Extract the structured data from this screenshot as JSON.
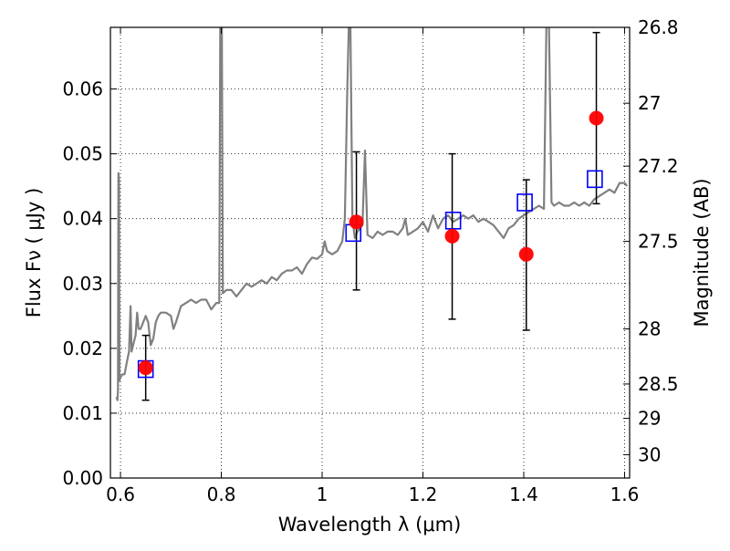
{
  "chart_data": {
    "type": "scatter",
    "xlabel": "Wavelength  λ (μm)",
    "ylabel": "Flux  Fν  ( μJy )",
    "y2label": "Magnitude (AB)",
    "xlim": [
      0.58,
      1.61
    ],
    "ylim": [
      0.0,
      0.0695
    ],
    "grid": true,
    "x_ticks": [
      0.6,
      0.8,
      1.0,
      1.2,
      1.4,
      1.6
    ],
    "x_tick_labels": [
      "0.6",
      "0.8",
      "1",
      "1.2",
      "1.4",
      "1.6"
    ],
    "y_ticks": [
      0.0,
      0.01,
      0.02,
      0.03,
      0.04,
      0.05,
      0.06
    ],
    "y_tick_labels": [
      "0.00",
      "0.01",
      "0.02",
      "0.03",
      "0.04",
      "0.05",
      "0.06"
    ],
    "y2_ticks": [
      {
        "label": "26.8",
        "flux": 0.0695
      },
      {
        "label": "27",
        "flux": 0.0578
      },
      {
        "label": "27.2",
        "flux": 0.0481
      },
      {
        "label": "27.5",
        "flux": 0.0365
      },
      {
        "label": "28",
        "flux": 0.023
      },
      {
        "label": "28.5",
        "flux": 0.0145
      },
      {
        "label": "29",
        "flux": 0.0092
      },
      {
        "label": "30",
        "flux": 0.0036
      }
    ],
    "series": [
      {
        "kind": "line",
        "color": "#808080",
        "points": [
          [
            0.592,
            0.0125
          ],
          [
            0.594,
            0.012
          ],
          [
            0.595,
            0.0135
          ],
          [
            0.596,
            0.047
          ],
          [
            0.597,
            0.046
          ],
          [
            0.598,
            0.015
          ],
          [
            0.6,
            0.0155
          ],
          [
            0.604,
            0.016
          ],
          [
            0.608,
            0.016
          ],
          [
            0.613,
            0.018
          ],
          [
            0.617,
            0.0195
          ],
          [
            0.62,
            0.0265
          ],
          [
            0.622,
            0.0195
          ],
          [
            0.625,
            0.0205
          ],
          [
            0.63,
            0.022
          ],
          [
            0.633,
            0.0255
          ],
          [
            0.636,
            0.023
          ],
          [
            0.64,
            0.023
          ],
          [
            0.645,
            0.024
          ],
          [
            0.65,
            0.025
          ],
          [
            0.655,
            0.024
          ],
          [
            0.66,
            0.0205
          ],
          [
            0.665,
            0.0215
          ],
          [
            0.67,
            0.024
          ],
          [
            0.675,
            0.025
          ],
          [
            0.68,
            0.0255
          ],
          [
            0.69,
            0.0255
          ],
          [
            0.7,
            0.025
          ],
          [
            0.705,
            0.023
          ],
          [
            0.71,
            0.024
          ],
          [
            0.72,
            0.0265
          ],
          [
            0.73,
            0.027
          ],
          [
            0.74,
            0.0275
          ],
          [
            0.75,
            0.027
          ],
          [
            0.76,
            0.0275
          ],
          [
            0.77,
            0.0275
          ],
          [
            0.78,
            0.026
          ],
          [
            0.79,
            0.027
          ],
          [
            0.796,
            0.027
          ],
          [
            0.798,
            0.07
          ],
          [
            0.801,
            0.07
          ],
          [
            0.803,
            0.0285
          ],
          [
            0.81,
            0.029
          ],
          [
            0.82,
            0.029
          ],
          [
            0.83,
            0.028
          ],
          [
            0.84,
            0.029
          ],
          [
            0.85,
            0.03
          ],
          [
            0.86,
            0.0295
          ],
          [
            0.87,
            0.03
          ],
          [
            0.88,
            0.0305
          ],
          [
            0.89,
            0.03
          ],
          [
            0.9,
            0.031
          ],
          [
            0.91,
            0.0305
          ],
          [
            0.92,
            0.0315
          ],
          [
            0.93,
            0.032
          ],
          [
            0.94,
            0.032
          ],
          [
            0.95,
            0.0325
          ],
          [
            0.96,
            0.0315
          ],
          [
            0.97,
            0.033
          ],
          [
            0.98,
            0.034
          ],
          [
            0.99,
            0.0338
          ],
          [
            1.0,
            0.0345
          ],
          [
            1.005,
            0.0365
          ],
          [
            1.01,
            0.035
          ],
          [
            1.02,
            0.0345
          ],
          [
            1.03,
            0.035
          ],
          [
            1.04,
            0.0365
          ],
          [
            1.045,
            0.04
          ],
          [
            1.05,
            0.06
          ],
          [
            1.053,
            0.07
          ],
          [
            1.056,
            0.07
          ],
          [
            1.06,
            0.04
          ],
          [
            1.065,
            0.037
          ],
          [
            1.07,
            0.038
          ],
          [
            1.08,
            0.039
          ],
          [
            1.085,
            0.0505
          ],
          [
            1.09,
            0.0375
          ],
          [
            1.1,
            0.037
          ],
          [
            1.11,
            0.038
          ],
          [
            1.12,
            0.0375
          ],
          [
            1.13,
            0.038
          ],
          [
            1.14,
            0.038
          ],
          [
            1.15,
            0.0375
          ],
          [
            1.16,
            0.0385
          ],
          [
            1.165,
            0.04
          ],
          [
            1.17,
            0.0375
          ],
          [
            1.18,
            0.038
          ],
          [
            1.19,
            0.0385
          ],
          [
            1.2,
            0.0395
          ],
          [
            1.21,
            0.038
          ],
          [
            1.22,
            0.0405
          ],
          [
            1.23,
            0.0385
          ],
          [
            1.24,
            0.04
          ],
          [
            1.25,
            0.0405
          ],
          [
            1.26,
            0.0395
          ],
          [
            1.27,
            0.04
          ],
          [
            1.28,
            0.0405
          ],
          [
            1.29,
            0.04
          ],
          [
            1.3,
            0.0405
          ],
          [
            1.31,
            0.0395
          ],
          [
            1.32,
            0.04
          ],
          [
            1.33,
            0.0395
          ],
          [
            1.34,
            0.039
          ],
          [
            1.35,
            0.038
          ],
          [
            1.36,
            0.037
          ],
          [
            1.37,
            0.0385
          ],
          [
            1.38,
            0.039
          ],
          [
            1.39,
            0.04
          ],
          [
            1.4,
            0.0405
          ],
          [
            1.41,
            0.041
          ],
          [
            1.42,
            0.0415
          ],
          [
            1.43,
            0.042
          ],
          [
            1.44,
            0.0415
          ],
          [
            1.445,
            0.07
          ],
          [
            1.45,
            0.07
          ],
          [
            1.455,
            0.0425
          ],
          [
            1.46,
            0.042
          ],
          [
            1.47,
            0.0425
          ],
          [
            1.48,
            0.042
          ],
          [
            1.49,
            0.042
          ],
          [
            1.5,
            0.0425
          ],
          [
            1.51,
            0.042
          ],
          [
            1.52,
            0.0425
          ],
          [
            1.53,
            0.042
          ],
          [
            1.54,
            0.043
          ],
          [
            1.55,
            0.0435
          ],
          [
            1.56,
            0.044
          ],
          [
            1.57,
            0.0445
          ],
          [
            1.58,
            0.044
          ],
          [
            1.59,
            0.0455
          ],
          [
            1.6,
            0.0455
          ],
          [
            1.605,
            0.045
          ]
        ]
      },
      {
        "kind": "points-errorbars",
        "color": "#ff0000",
        "points": [
          {
            "x": 0.65,
            "y": 0.017,
            "yerr": [
              0.005,
              0.005
            ]
          },
          {
            "x": 1.068,
            "y": 0.0395,
            "yerr": [
              0.0105,
              0.0108
            ]
          },
          {
            "x": 1.258,
            "y": 0.0373,
            "yerr": [
              0.0128,
              0.0127
            ]
          },
          {
            "x": 1.405,
            "y": 0.0345,
            "yerr": [
              0.0117,
              0.0115
            ]
          },
          {
            "x": 1.544,
            "y": 0.0555,
            "yerr": [
              0.0132,
              0.0132
            ]
          }
        ]
      },
      {
        "kind": "open-squares",
        "color": "#0000ff",
        "points": [
          {
            "x": 0.65,
            "y": 0.0168
          },
          {
            "x": 1.062,
            "y": 0.0378
          },
          {
            "x": 1.26,
            "y": 0.0397
          },
          {
            "x": 1.402,
            "y": 0.0425
          },
          {
            "x": 1.541,
            "y": 0.0461
          }
        ]
      }
    ]
  }
}
